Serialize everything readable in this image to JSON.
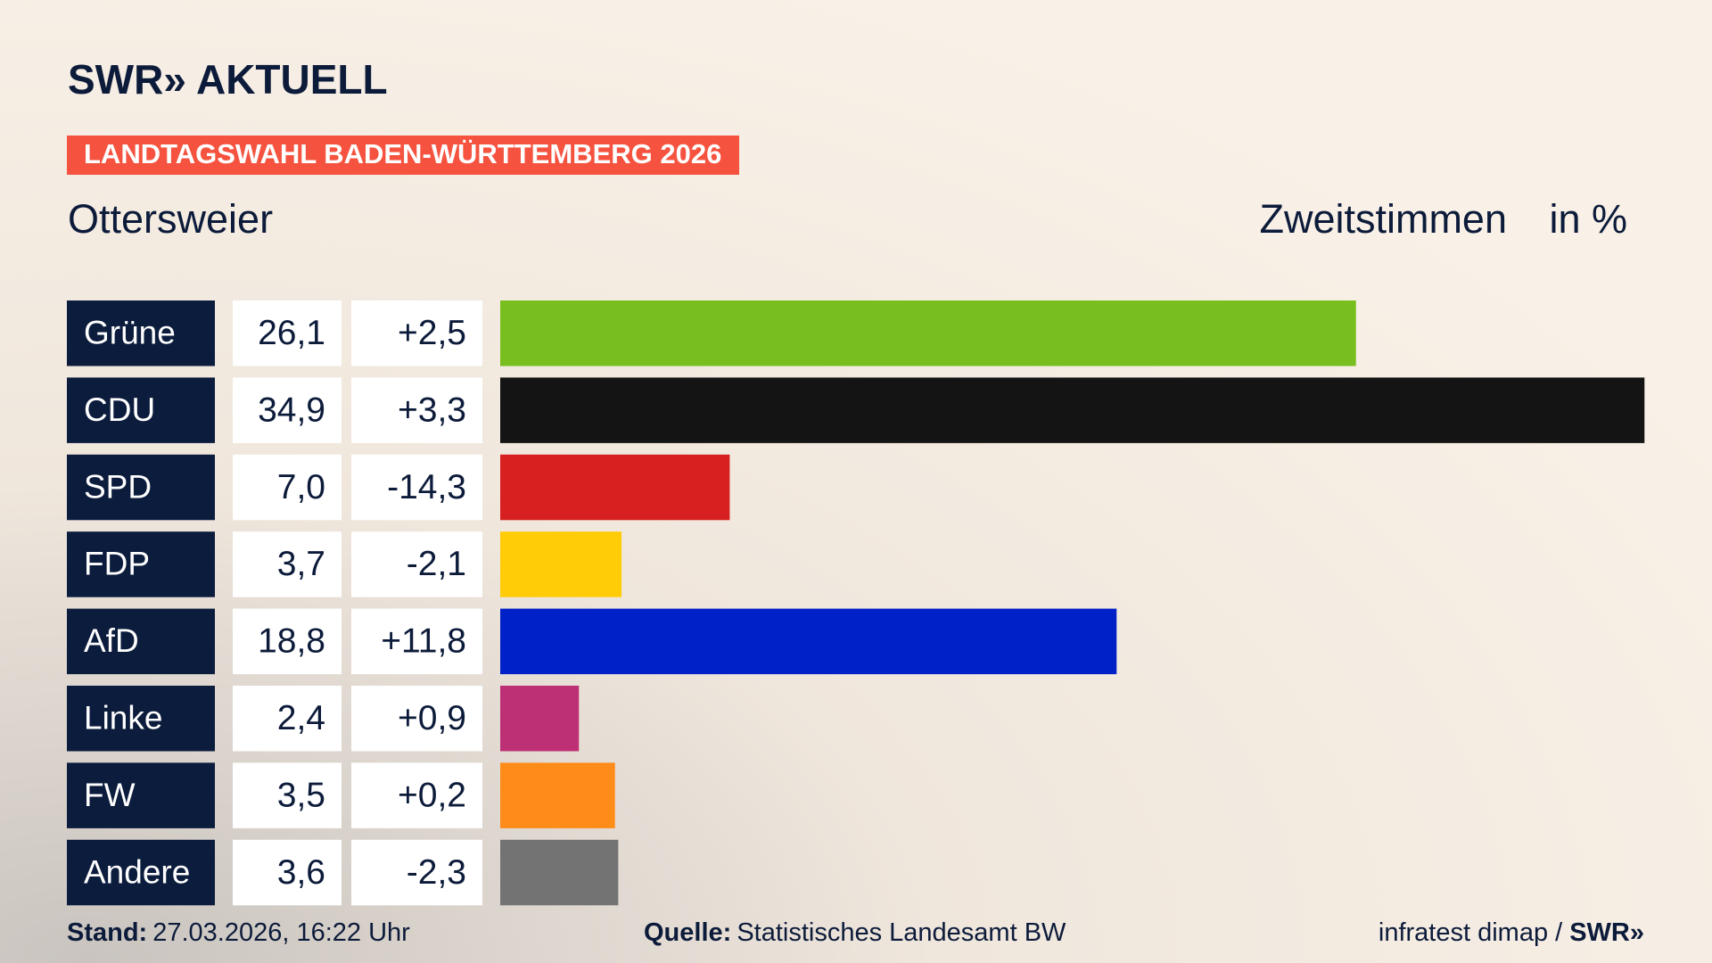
{
  "header": {
    "brand": "SWR» AKTUELL",
    "banner": "LANDTAGSWAHL BADEN-WÜRTTEMBERG 2026"
  },
  "chart_data": {
    "type": "bar",
    "orientation": "horizontal",
    "title": "Ottersweier",
    "value_title": "Zweitstimmen",
    "unit_label": "in %",
    "categories": [
      "Grüne",
      "CDU",
      "SPD",
      "FDP",
      "AfD",
      "Linke",
      "FW",
      "Andere"
    ],
    "values": [
      26.1,
      34.9,
      7.0,
      3.7,
      18.8,
      2.4,
      3.5,
      3.6
    ],
    "value_labels": [
      "26,1",
      "34,9",
      "7,0",
      "3,7",
      "18,8",
      "2,4",
      "3,5",
      "3,6"
    ],
    "changes": [
      2.5,
      3.3,
      -14.3,
      -2.1,
      11.8,
      0.9,
      0.2,
      -2.3
    ],
    "change_labels": [
      "+2,5",
      "+3,3",
      "-14,3",
      "-2,1",
      "+11,8",
      "+0,9",
      "+0,2",
      "-2,3"
    ],
    "colors": [
      "#78be1e",
      "#141414",
      "#d7201f",
      "#ffcc07",
      "#0020c8",
      "#be3075",
      "#ff8c19",
      "#737373"
    ]
  },
  "footer": {
    "stand_label": "Stand:",
    "stand": "27.03.2026, 16:22 Uhr",
    "source_label": "Quelle:",
    "source": "Statistisches Landesamt BW",
    "credit": "infratest dimap /",
    "credit_brand": "SWR»"
  }
}
